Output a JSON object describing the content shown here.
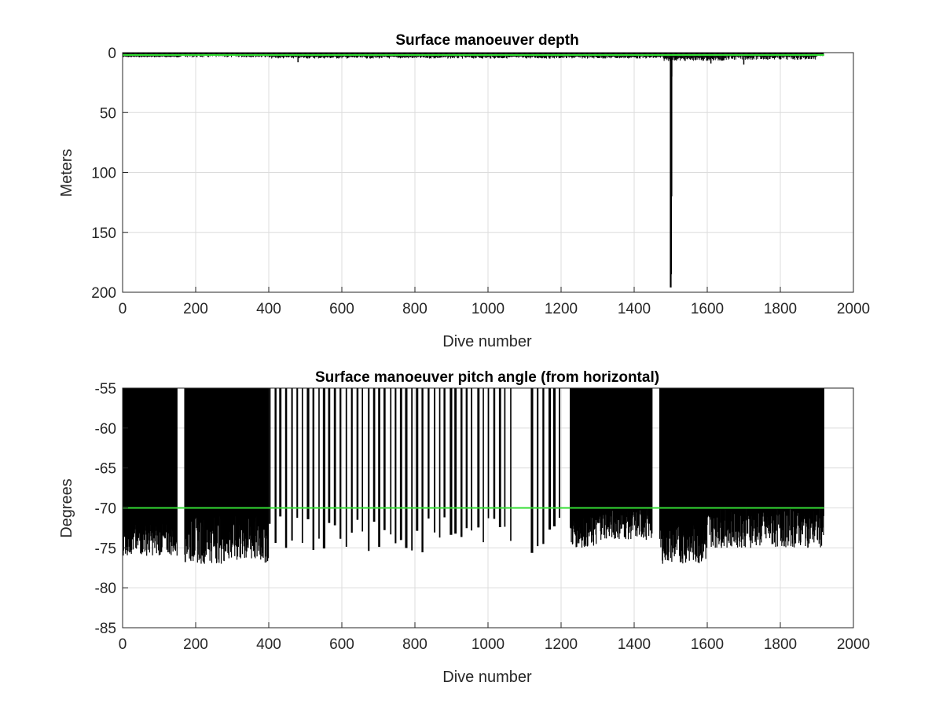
{
  "chart_data": [
    {
      "type": "bar",
      "title": "Surface manoeuver depth",
      "xlabel": "Dive number",
      "ylabel": "Meters",
      "xlim": [
        0,
        2000
      ],
      "ylim": [
        0,
        200
      ],
      "y_reversed": true,
      "grid": true,
      "x_ticks": [
        "0",
        "200",
        "400",
        "600",
        "800",
        "1000",
        "1200",
        "1400",
        "1600",
        "1800",
        "2000"
      ],
      "y_ticks": [
        "0",
        "50",
        "100",
        "150",
        "200"
      ],
      "series_color": "#000000",
      "reference_line": {
        "value": 2,
        "color": "#33dd33"
      },
      "data_extent": [
        1,
        1920
      ],
      "segments": [
        {
          "x": [
            1,
            150
          ],
          "min": 3,
          "max": 4
        },
        {
          "x": [
            150,
            400
          ],
          "min": 2,
          "max": 4
        },
        {
          "x": [
            400,
            800
          ],
          "min": 3,
          "max": 5
        },
        {
          "x": [
            800,
            1000
          ],
          "min": 3,
          "max": 5
        },
        {
          "x": [
            1000,
            1480
          ],
          "min": 3,
          "max": 5
        },
        {
          "x": [
            1480,
            1650
          ],
          "min": 4,
          "max": 7
        },
        {
          "x": [
            1650,
            1900
          ],
          "min": 3,
          "max": 6
        },
        {
          "x": [
            1900,
            1920
          ],
          "min": 2,
          "max": 3
        }
      ],
      "spikes": [
        {
          "x": 480,
          "value": 8
        },
        {
          "x": 1500,
          "value": 196
        },
        {
          "x": 1501,
          "value": 185
        },
        {
          "x": 1502,
          "value": 120
        },
        {
          "x": 1503,
          "value": 20
        },
        {
          "x": 1610,
          "value": 9
        },
        {
          "x": 1700,
          "value": 10
        }
      ]
    },
    {
      "type": "bar",
      "title": "Surface manoeuver pitch angle (from horizontal)",
      "xlabel": "Dive number",
      "ylabel": "Degrees",
      "xlim": [
        0,
        2000
      ],
      "ylim": [
        -85,
        -55
      ],
      "grid": true,
      "x_ticks": [
        "0",
        "200",
        "400",
        "600",
        "800",
        "1000",
        "1200",
        "1400",
        "1600",
        "1800",
        "2000"
      ],
      "y_ticks": [
        "-55",
        "-60",
        "-65",
        "-70",
        "-75",
        "-80",
        "-85"
      ],
      "series_color": "#000000",
      "reference_line": {
        "value": -70,
        "color": "#33dd33"
      },
      "data_extent": [
        1,
        1920
      ],
      "dense_blocks": [
        {
          "x": [
            1,
            150
          ],
          "min": -76,
          "max": -72
        },
        {
          "x": [
            170,
            400
          ],
          "min": -77,
          "max": -71
        },
        {
          "x": [
            1225,
            1300
          ],
          "min": -75,
          "max": -71
        },
        {
          "x": [
            1300,
            1450
          ],
          "min": -74,
          "max": -70
        },
        {
          "x": [
            1470,
            1600
          ],
          "min": -77,
          "max": -72
        },
        {
          "x": [
            1600,
            1920
          ],
          "min": -75,
          "max": -70
        }
      ],
      "bottom_reversed_from": -55,
      "sparse_range": [
        400,
        1225
      ],
      "sparse_gaps": [
        [
          1062,
          1120
        ],
        [
          1200,
          1225
        ]
      ],
      "sparse_spacing": 15,
      "sparse_min": [
        -76,
        -71
      ]
    }
  ]
}
